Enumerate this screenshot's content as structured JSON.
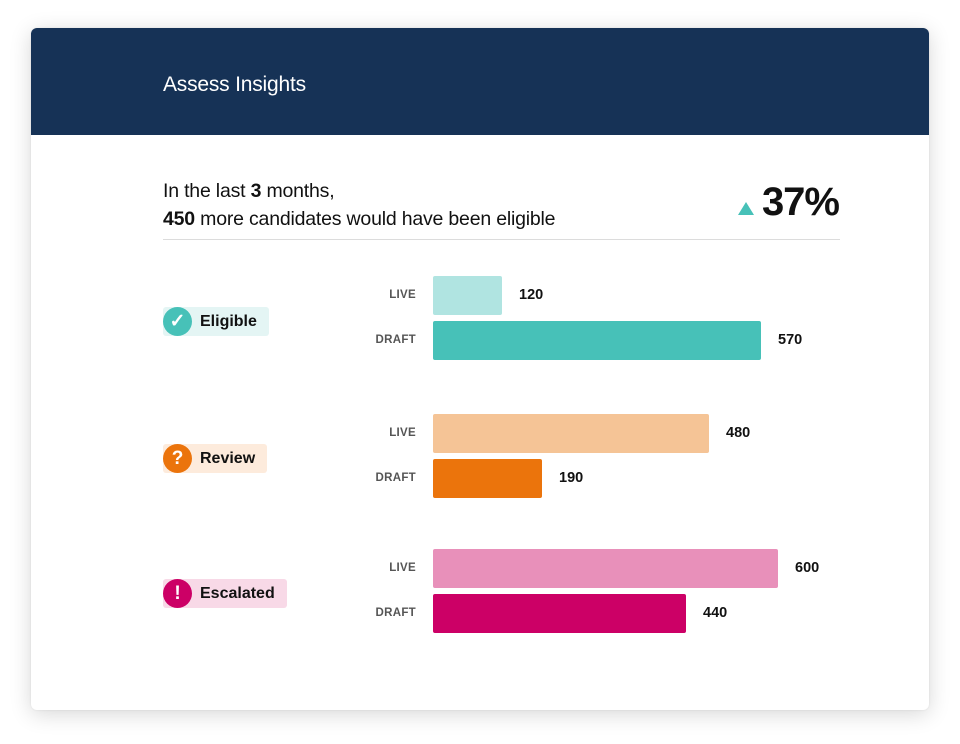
{
  "header": {
    "title": "Assess Insights"
  },
  "summary": {
    "line1_prefix": "In the last ",
    "months": "3",
    "line1_suffix": " months,",
    "count": "450",
    "line2_suffix": " more candidates would have been eligible",
    "delta_icon": "triangle-up-icon",
    "delta_pct": "37%",
    "delta_color": "#47c1b8"
  },
  "groups": [
    {
      "label": "Eligible",
      "icon": "check-circle-icon",
      "icon_glyph": "✓",
      "badge_bg": "#e4f5f4",
      "icon_bg": "#47c1b8",
      "rows": [
        {
          "label": "LIVE",
          "value": "120",
          "color": "#b0e4e1"
        },
        {
          "label": "DRAFT",
          "value": "570",
          "color": "#47c1b8"
        }
      ]
    },
    {
      "label": "Review",
      "icon": "question-circle-icon",
      "icon_glyph": "?",
      "badge_bg": "#fdebdc",
      "icon_bg": "#eb740c",
      "rows": [
        {
          "label": "LIVE",
          "value": "480",
          "color": "#f5c496"
        },
        {
          "label": "DRAFT",
          "value": "190",
          "color": "#eb740c"
        }
      ]
    },
    {
      "label": "Escalated",
      "icon": "exclamation-circle-icon",
      "icon_glyph": "!",
      "badge_bg": "#f8d9e7",
      "icon_bg": "#cc0066",
      "rows": [
        {
          "label": "LIVE",
          "value": "600",
          "color": "#e890ba"
        },
        {
          "label": "DRAFT",
          "value": "440",
          "color": "#cc0066"
        }
      ]
    }
  ],
  "chart_data": {
    "type": "bar",
    "orientation": "horizontal",
    "title": "Assess Insights",
    "categories": [
      "Eligible",
      "Review",
      "Escalated"
    ],
    "series": [
      {
        "name": "LIVE",
        "values": [
          120,
          480,
          600
        ]
      },
      {
        "name": "DRAFT",
        "values": [
          570,
          190,
          440
        ]
      }
    ],
    "annotations": [
      "In the last 3 months, 450 more candidates would have been eligible",
      "▲ 37%"
    ],
    "xlabel": "",
    "ylabel": "",
    "grid": false
  }
}
